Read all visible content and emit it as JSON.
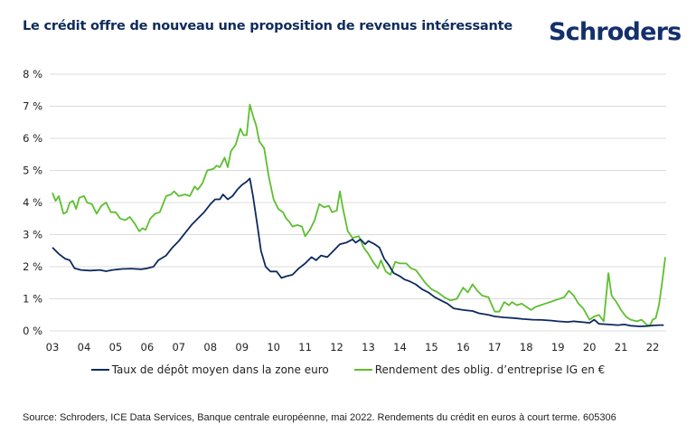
{
  "header": {
    "title": "Le crédit offre de nouveau une proposition de revenus intéressante",
    "logo": "Schroders"
  },
  "colors": {
    "brand": "#13306b",
    "title": "#0f2b5b",
    "deposit": "#0d2a5e",
    "bond": "#5dbf2f",
    "grid": "#dcdcdc"
  },
  "chart_data": {
    "type": "line",
    "title": "Le crédit offre de nouveau une proposition de revenus intéressante",
    "xlabel": "",
    "ylabel": "",
    "ylim": [
      0,
      8
    ],
    "xlim": [
      2003.0,
      2022.45
    ],
    "grid": true,
    "legend_position": "bottom",
    "yticks": [
      0,
      1,
      2,
      3,
      4,
      5,
      6,
      7,
      8
    ],
    "ytick_labels": [
      "0 %",
      "1 %",
      "2 %",
      "3 %",
      "4 %",
      "5 %",
      "6 %",
      "7 %",
      "8 %"
    ],
    "xtick_labels": [
      "03",
      "04",
      "05",
      "06",
      "07",
      "08",
      "09",
      "10",
      "11",
      "12",
      "13",
      "14",
      "15",
      "16",
      "17",
      "18",
      "19",
      "20",
      "21",
      "22"
    ],
    "series": [
      {
        "name": "Taux de dépôt moyen dans la zone euro",
        "color": "#0d2a5e",
        "points": [
          [
            2003.0,
            2.6
          ],
          [
            2003.2,
            2.4
          ],
          [
            2003.4,
            2.25
          ],
          [
            2003.55,
            2.2
          ],
          [
            2003.7,
            1.95
          ],
          [
            2003.9,
            1.9
          ],
          [
            2004.2,
            1.88
          ],
          [
            2004.5,
            1.9
          ],
          [
            2004.7,
            1.86
          ],
          [
            2004.9,
            1.9
          ],
          [
            2005.2,
            1.93
          ],
          [
            2005.5,
            1.94
          ],
          [
            2005.8,
            1.92
          ],
          [
            2006.0,
            1.95
          ],
          [
            2006.2,
            2.0
          ],
          [
            2006.35,
            2.2
          ],
          [
            2006.6,
            2.35
          ],
          [
            2006.8,
            2.6
          ],
          [
            2007.0,
            2.8
          ],
          [
            2007.2,
            3.05
          ],
          [
            2007.4,
            3.3
          ],
          [
            2007.6,
            3.5
          ],
          [
            2007.8,
            3.7
          ],
          [
            2008.0,
            3.95
          ],
          [
            2008.15,
            4.1
          ],
          [
            2008.3,
            4.1
          ],
          [
            2008.4,
            4.25
          ],
          [
            2008.55,
            4.1
          ],
          [
            2008.7,
            4.2
          ],
          [
            2008.85,
            4.4
          ],
          [
            2009.0,
            4.55
          ],
          [
            2009.15,
            4.65
          ],
          [
            2009.25,
            4.75
          ],
          [
            2009.35,
            4.2
          ],
          [
            2009.5,
            3.2
          ],
          [
            2009.6,
            2.5
          ],
          [
            2009.75,
            2.0
          ],
          [
            2009.9,
            1.85
          ],
          [
            2010.1,
            1.85
          ],
          [
            2010.25,
            1.65
          ],
          [
            2010.4,
            1.7
          ],
          [
            2010.6,
            1.75
          ],
          [
            2010.8,
            1.95
          ],
          [
            2011.0,
            2.1
          ],
          [
            2011.2,
            2.3
          ],
          [
            2011.35,
            2.2
          ],
          [
            2011.5,
            2.35
          ],
          [
            2011.7,
            2.3
          ],
          [
            2011.9,
            2.5
          ],
          [
            2012.1,
            2.7
          ],
          [
            2012.3,
            2.75
          ],
          [
            2012.5,
            2.85
          ],
          [
            2012.6,
            2.75
          ],
          [
            2012.75,
            2.85
          ],
          [
            2012.9,
            2.7
          ],
          [
            2013.0,
            2.8
          ],
          [
            2013.2,
            2.7
          ],
          [
            2013.35,
            2.6
          ],
          [
            2013.5,
            2.25
          ],
          [
            2013.65,
            2.05
          ],
          [
            2013.8,
            1.8
          ],
          [
            2014.0,
            1.7
          ],
          [
            2014.15,
            1.6
          ],
          [
            2014.3,
            1.55
          ],
          [
            2014.5,
            1.45
          ],
          [
            2014.7,
            1.3
          ],
          [
            2014.9,
            1.2
          ],
          [
            2015.1,
            1.05
          ],
          [
            2015.3,
            0.95
          ],
          [
            2015.5,
            0.85
          ],
          [
            2015.7,
            0.7
          ],
          [
            2016.0,
            0.65
          ],
          [
            2016.3,
            0.62
          ],
          [
            2016.5,
            0.55
          ],
          [
            2016.8,
            0.5
          ],
          [
            2017.0,
            0.45
          ],
          [
            2017.3,
            0.42
          ],
          [
            2017.6,
            0.4
          ],
          [
            2017.9,
            0.37
          ],
          [
            2018.2,
            0.35
          ],
          [
            2018.5,
            0.34
          ],
          [
            2018.8,
            0.32
          ],
          [
            2019.0,
            0.3
          ],
          [
            2019.3,
            0.28
          ],
          [
            2019.5,
            0.3
          ],
          [
            2019.8,
            0.27
          ],
          [
            2020.0,
            0.25
          ],
          [
            2020.15,
            0.35
          ],
          [
            2020.3,
            0.22
          ],
          [
            2020.6,
            0.2
          ],
          [
            2020.9,
            0.18
          ],
          [
            2021.1,
            0.2
          ],
          [
            2021.3,
            0.16
          ],
          [
            2021.6,
            0.14
          ],
          [
            2021.8,
            0.15
          ],
          [
            2022.0,
            0.17
          ],
          [
            2022.2,
            0.18
          ],
          [
            2022.35,
            0.18
          ]
        ]
      },
      {
        "name": "Rendement des oblig. d’entreprise IG en €",
        "color": "#5dbf2f",
        "points": [
          [
            2003.0,
            4.3
          ],
          [
            2003.1,
            4.05
          ],
          [
            2003.2,
            4.2
          ],
          [
            2003.35,
            3.65
          ],
          [
            2003.45,
            3.7
          ],
          [
            2003.55,
            4.0
          ],
          [
            2003.65,
            4.05
          ],
          [
            2003.75,
            3.8
          ],
          [
            2003.85,
            4.15
          ],
          [
            2004.0,
            4.2
          ],
          [
            2004.1,
            4.0
          ],
          [
            2004.25,
            3.95
          ],
          [
            2004.4,
            3.65
          ],
          [
            2004.55,
            3.9
          ],
          [
            2004.7,
            4.0
          ],
          [
            2004.85,
            3.7
          ],
          [
            2005.0,
            3.7
          ],
          [
            2005.15,
            3.5
          ],
          [
            2005.3,
            3.45
          ],
          [
            2005.45,
            3.55
          ],
          [
            2005.6,
            3.35
          ],
          [
            2005.75,
            3.1
          ],
          [
            2005.85,
            3.2
          ],
          [
            2005.95,
            3.15
          ],
          [
            2006.1,
            3.5
          ],
          [
            2006.25,
            3.65
          ],
          [
            2006.4,
            3.7
          ],
          [
            2006.5,
            3.95
          ],
          [
            2006.6,
            4.2
          ],
          [
            2006.75,
            4.25
          ],
          [
            2006.85,
            4.35
          ],
          [
            2007.0,
            4.2
          ],
          [
            2007.2,
            4.25
          ],
          [
            2007.35,
            4.2
          ],
          [
            2007.5,
            4.5
          ],
          [
            2007.6,
            4.4
          ],
          [
            2007.75,
            4.6
          ],
          [
            2007.9,
            5.0
          ],
          [
            2008.1,
            5.05
          ],
          [
            2008.2,
            5.15
          ],
          [
            2008.3,
            5.1
          ],
          [
            2008.45,
            5.4
          ],
          [
            2008.55,
            5.1
          ],
          [
            2008.65,
            5.6
          ],
          [
            2008.8,
            5.8
          ],
          [
            2008.95,
            6.3
          ],
          [
            2009.05,
            6.1
          ],
          [
            2009.15,
            6.1
          ],
          [
            2009.25,
            7.05
          ],
          [
            2009.35,
            6.7
          ],
          [
            2009.45,
            6.4
          ],
          [
            2009.55,
            5.9
          ],
          [
            2009.7,
            5.7
          ],
          [
            2009.85,
            4.8
          ],
          [
            2010.0,
            4.1
          ],
          [
            2010.15,
            3.8
          ],
          [
            2010.3,
            3.7
          ],
          [
            2010.4,
            3.5
          ],
          [
            2010.5,
            3.4
          ],
          [
            2010.6,
            3.25
          ],
          [
            2010.75,
            3.3
          ],
          [
            2010.9,
            3.25
          ],
          [
            2011.0,
            2.95
          ],
          [
            2011.15,
            3.15
          ],
          [
            2011.3,
            3.45
          ],
          [
            2011.45,
            3.95
          ],
          [
            2011.6,
            3.85
          ],
          [
            2011.75,
            3.9
          ],
          [
            2011.85,
            3.7
          ],
          [
            2012.0,
            3.75
          ],
          [
            2012.1,
            4.35
          ],
          [
            2012.2,
            3.8
          ],
          [
            2012.35,
            3.1
          ],
          [
            2012.5,
            2.9
          ],
          [
            2012.7,
            2.95
          ],
          [
            2012.85,
            2.6
          ],
          [
            2013.0,
            2.4
          ],
          [
            2013.15,
            2.15
          ],
          [
            2013.3,
            1.95
          ],
          [
            2013.4,
            2.2
          ],
          [
            2013.55,
            1.85
          ],
          [
            2013.7,
            1.75
          ],
          [
            2013.85,
            2.15
          ],
          [
            2014.0,
            2.1
          ],
          [
            2014.2,
            2.1
          ],
          [
            2014.35,
            1.95
          ],
          [
            2014.5,
            1.9
          ],
          [
            2014.65,
            1.7
          ],
          [
            2014.8,
            1.5
          ],
          [
            2015.0,
            1.3
          ],
          [
            2015.2,
            1.2
          ],
          [
            2015.4,
            1.05
          ],
          [
            2015.6,
            0.95
          ],
          [
            2015.8,
            1.0
          ],
          [
            2016.0,
            1.35
          ],
          [
            2016.15,
            1.2
          ],
          [
            2016.3,
            1.45
          ],
          [
            2016.45,
            1.25
          ],
          [
            2016.6,
            1.1
          ],
          [
            2016.8,
            1.05
          ],
          [
            2017.0,
            0.6
          ],
          [
            2017.15,
            0.6
          ],
          [
            2017.3,
            0.9
          ],
          [
            2017.45,
            0.8
          ],
          [
            2017.55,
            0.9
          ],
          [
            2017.7,
            0.8
          ],
          [
            2017.85,
            0.85
          ],
          [
            2018.0,
            0.75
          ],
          [
            2018.15,
            0.65
          ],
          [
            2018.3,
            0.75
          ],
          [
            2018.45,
            0.8
          ],
          [
            2018.6,
            0.85
          ],
          [
            2018.75,
            0.9
          ],
          [
            2018.9,
            0.95
          ],
          [
            2019.05,
            1.0
          ],
          [
            2019.2,
            1.05
          ],
          [
            2019.35,
            1.25
          ],
          [
            2019.5,
            1.1
          ],
          [
            2019.65,
            0.85
          ],
          [
            2019.8,
            0.7
          ],
          [
            2020.0,
            0.35
          ],
          [
            2020.15,
            0.45
          ],
          [
            2020.3,
            0.5
          ],
          [
            2020.45,
            0.3
          ],
          [
            2020.6,
            1.8
          ],
          [
            2020.7,
            1.1
          ],
          [
            2020.85,
            0.9
          ],
          [
            2021.0,
            0.65
          ],
          [
            2021.15,
            0.45
          ],
          [
            2021.3,
            0.35
          ],
          [
            2021.5,
            0.3
          ],
          [
            2021.65,
            0.35
          ],
          [
            2021.8,
            0.2
          ],
          [
            2021.9,
            0.15
          ],
          [
            2022.0,
            0.35
          ],
          [
            2022.1,
            0.4
          ],
          [
            2022.2,
            0.8
          ],
          [
            2022.3,
            1.5
          ],
          [
            2022.4,
            2.3
          ]
        ]
      }
    ]
  },
  "legend": {
    "items": [
      {
        "label": "Taux de dépôt moyen dans la zone euro"
      },
      {
        "label": "Rendement des oblig. d’entreprise IG en €"
      }
    ]
  },
  "footer": {
    "source": "Source: Schroders, ICE Data Services, Banque centrale européenne, mai 2022. Rendements du crédit en euros à court terme. 605306"
  }
}
